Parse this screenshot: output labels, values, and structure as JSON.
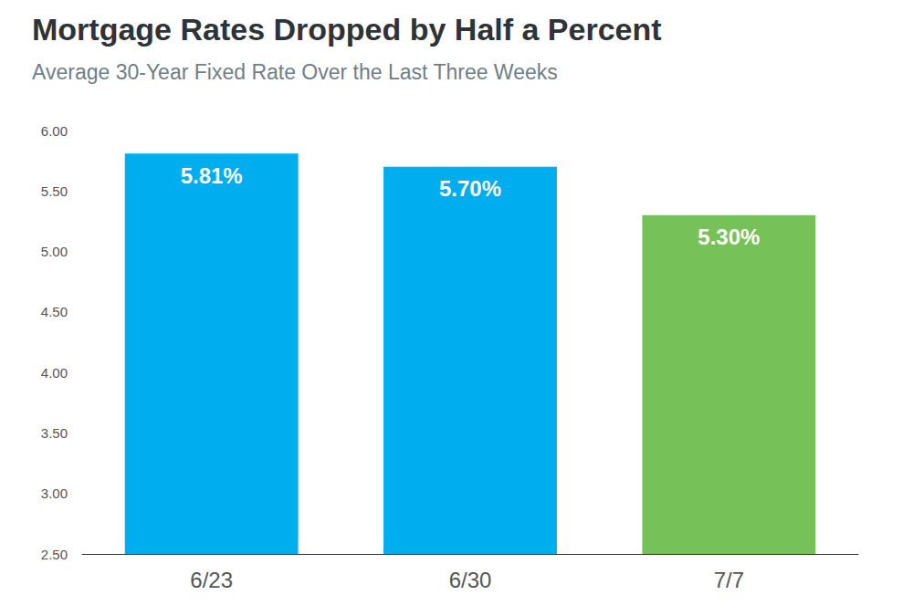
{
  "chart_data": {
    "type": "bar",
    "title": "Mortgage Rates Dropped by Half a Percent",
    "subtitle": "Average 30-Year Fixed Rate Over the Last Three Weeks",
    "categories": [
      "6/23",
      "6/30",
      "7/7"
    ],
    "values": [
      5.81,
      5.7,
      5.3
    ],
    "value_labels": [
      "5.81%",
      "5.70%",
      "5.30%"
    ],
    "colors": [
      "#00adef",
      "#00adef",
      "#77c159"
    ],
    "data_labels": true,
    "ylim": [
      2.5,
      6.0
    ],
    "yticks": [
      {
        "value": 2.5,
        "label": "2.50"
      },
      {
        "value": 3.0,
        "label": "3.00"
      },
      {
        "value": 3.5,
        "label": "3.50"
      },
      {
        "value": 4.0,
        "label": "4.00"
      },
      {
        "value": 4.5,
        "label": "4.50"
      },
      {
        "value": 5.0,
        "label": "5.00"
      },
      {
        "value": 5.5,
        "label": "5.50"
      },
      {
        "value": 6.0,
        "label": "6.00"
      }
    ],
    "grid": false
  }
}
